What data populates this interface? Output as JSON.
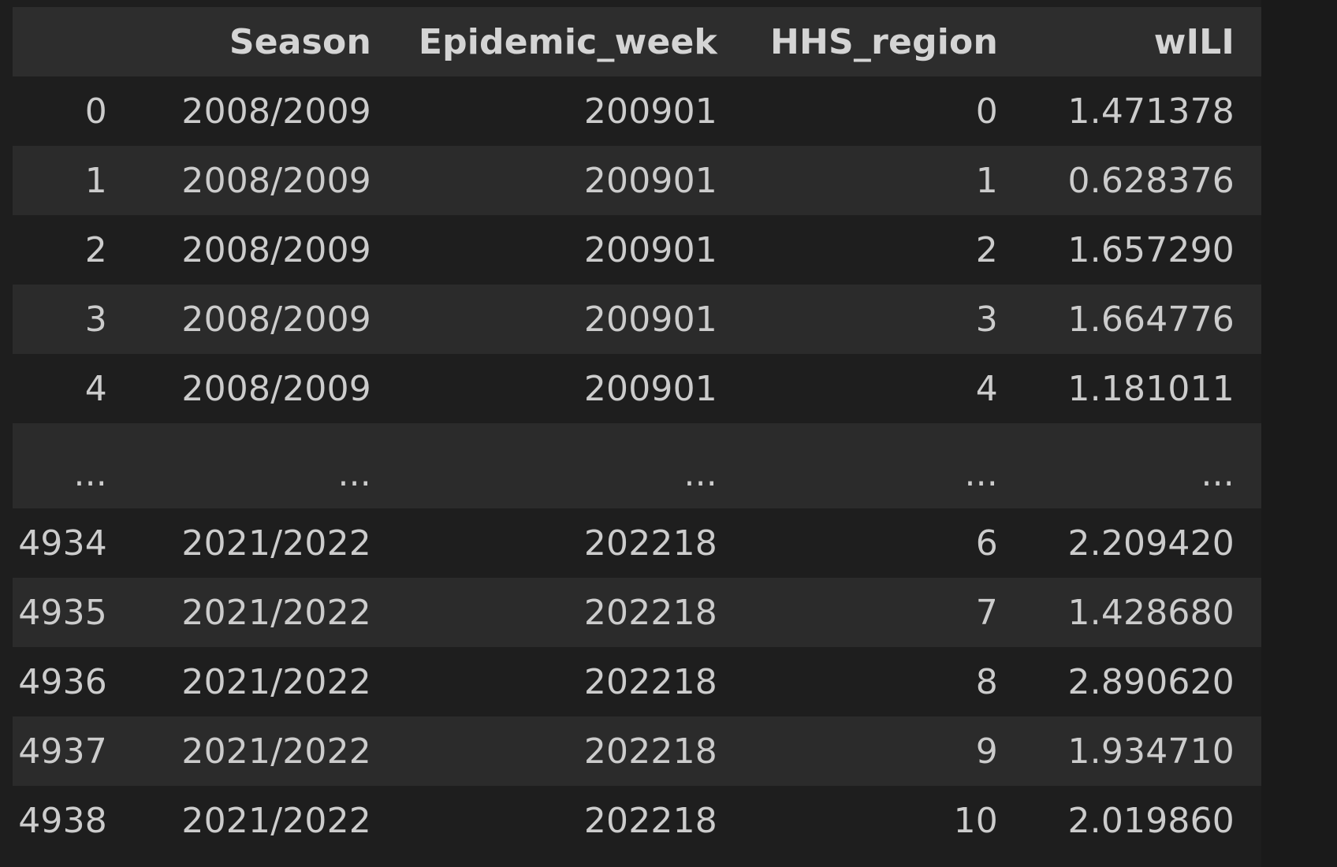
{
  "table": {
    "columns": [
      "",
      "Season",
      "Epidemic_week",
      "HHS_region",
      "wILI"
    ],
    "rows": [
      {
        "index": "0",
        "season": "2008/2009",
        "week": "200901",
        "region": "0",
        "wili": "1.471378"
      },
      {
        "index": "1",
        "season": "2008/2009",
        "week": "200901",
        "region": "1",
        "wili": "0.628376"
      },
      {
        "index": "2",
        "season": "2008/2009",
        "week": "200901",
        "region": "2",
        "wili": "1.657290"
      },
      {
        "index": "3",
        "season": "2008/2009",
        "week": "200901",
        "region": "3",
        "wili": "1.664776"
      },
      {
        "index": "4",
        "season": "2008/2009",
        "week": "200901",
        "region": "4",
        "wili": "1.181011"
      },
      {
        "index": "...",
        "season": "...",
        "week": "...",
        "region": "...",
        "wili": "..."
      },
      {
        "index": "4934",
        "season": "2021/2022",
        "week": "202218",
        "region": "6",
        "wili": "2.209420"
      },
      {
        "index": "4935",
        "season": "2021/2022",
        "week": "202218",
        "region": "7",
        "wili": "1.428680"
      },
      {
        "index": "4936",
        "season": "2021/2022",
        "week": "202218",
        "region": "8",
        "wili": "2.890620"
      },
      {
        "index": "4937",
        "season": "2021/2022",
        "week": "202218",
        "region": "9",
        "wili": "1.934710"
      },
      {
        "index": "4938",
        "season": "2021/2022",
        "week": "202218",
        "region": "10",
        "wili": "2.019860"
      }
    ]
  }
}
